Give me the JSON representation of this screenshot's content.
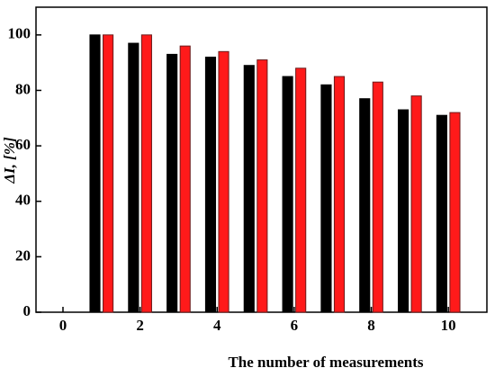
{
  "chart_data": {
    "type": "bar",
    "x": [
      1,
      2,
      3,
      4,
      5,
      6,
      7,
      8,
      9,
      10
    ],
    "series": [
      {
        "color": "#000000",
        "values": [
          100,
          97,
          93,
          92,
          89,
          85,
          82,
          77,
          73,
          71
        ]
      },
      {
        "color": "#ff1a1a",
        "values": [
          100,
          100,
          96,
          94,
          91,
          88,
          85,
          83,
          78,
          72
        ]
      }
    ],
    "xlabel": "The number of measurements",
    "ylabel": "ΔI, [%]",
    "xlim": [
      -0.7,
      11
    ],
    "xticks": [
      0,
      2,
      4,
      6,
      8,
      10
    ],
    "ylim": [
      0,
      110
    ],
    "yticks": [
      0,
      20,
      40,
      60,
      80,
      100
    ],
    "grid": false
  }
}
